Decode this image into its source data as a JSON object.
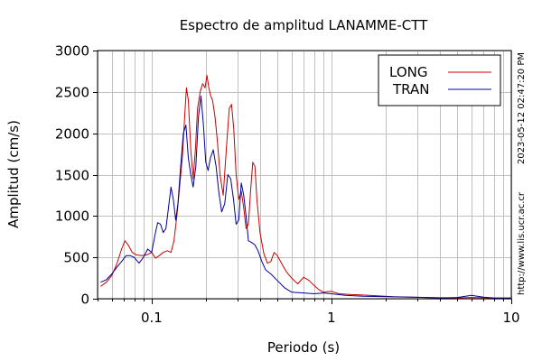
{
  "chart_data": {
    "type": "line",
    "title": "Espectro de amplitud LANAMME-CTT",
    "xlabel": "Periodo (s)",
    "ylabel": "Amplitud (cm/s)",
    "xscale": "log",
    "xlim": [
      0.05,
      10
    ],
    "ylim": [
      0,
      3000
    ],
    "x_ticks": [
      0.1,
      1,
      10
    ],
    "x_tick_labels": [
      "0.1",
      "1",
      "10"
    ],
    "y_ticks": [
      0,
      500,
      1000,
      1500,
      2000,
      2500,
      3000
    ],
    "y_tick_labels": [
      "0",
      "500",
      "1000",
      "1500",
      "2000",
      "2500",
      "3000"
    ],
    "grid": true,
    "legend_position": "top-right",
    "side_text": [
      "2023-05-12 02:47:20 PM",
      "http://www.lis.ucr.ac.cr"
    ],
    "series": [
      {
        "name": "LONG",
        "color": "#cc0000",
        "points": [
          [
            0.052,
            150
          ],
          [
            0.056,
            200
          ],
          [
            0.06,
            280
          ],
          [
            0.064,
            420
          ],
          [
            0.068,
            600
          ],
          [
            0.071,
            700
          ],
          [
            0.074,
            650
          ],
          [
            0.078,
            560
          ],
          [
            0.082,
            530
          ],
          [
            0.088,
            520
          ],
          [
            0.094,
            530
          ],
          [
            0.1,
            560
          ],
          [
            0.105,
            490
          ],
          [
            0.11,
            520
          ],
          [
            0.116,
            560
          ],
          [
            0.122,
            580
          ],
          [
            0.128,
            560
          ],
          [
            0.133,
            700
          ],
          [
            0.138,
            1000
          ],
          [
            0.143,
            1350
          ],
          [
            0.148,
            1700
          ],
          [
            0.153,
            2250
          ],
          [
            0.156,
            2550
          ],
          [
            0.16,
            2400
          ],
          [
            0.165,
            1800
          ],
          [
            0.17,
            1450
          ],
          [
            0.175,
            1800
          ],
          [
            0.18,
            2300
          ],
          [
            0.186,
            2500
          ],
          [
            0.192,
            2600
          ],
          [
            0.198,
            2550
          ],
          [
            0.203,
            2700
          ],
          [
            0.208,
            2550
          ],
          [
            0.213,
            2450
          ],
          [
            0.218,
            2400
          ],
          [
            0.225,
            2200
          ],
          [
            0.232,
            1900
          ],
          [
            0.24,
            1500
          ],
          [
            0.25,
            1250
          ],
          [
            0.26,
            1800
          ],
          [
            0.27,
            2300
          ],
          [
            0.278,
            2350
          ],
          [
            0.286,
            2050
          ],
          [
            0.295,
            1500
          ],
          [
            0.305,
            1200
          ],
          [
            0.315,
            1300
          ],
          [
            0.325,
            1100
          ],
          [
            0.335,
            850
          ],
          [
            0.345,
            900
          ],
          [
            0.355,
            1300
          ],
          [
            0.365,
            1650
          ],
          [
            0.375,
            1600
          ],
          [
            0.385,
            1200
          ],
          [
            0.4,
            800
          ],
          [
            0.42,
            550
          ],
          [
            0.44,
            430
          ],
          [
            0.46,
            450
          ],
          [
            0.48,
            560
          ],
          [
            0.5,
            520
          ],
          [
            0.53,
            420
          ],
          [
            0.56,
            330
          ],
          [
            0.6,
            250
          ],
          [
            0.65,
            180
          ],
          [
            0.7,
            260
          ],
          [
            0.75,
            220
          ],
          [
            0.8,
            160
          ],
          [
            0.85,
            110
          ],
          [
            0.9,
            80
          ],
          [
            1.0,
            90
          ],
          [
            1.1,
            60
          ],
          [
            1.3,
            50
          ],
          [
            1.5,
            45
          ],
          [
            1.8,
            35
          ],
          [
            2.2,
            25
          ],
          [
            3.0,
            18
          ],
          [
            4.0,
            12
          ],
          [
            5.0,
            10
          ],
          [
            6.0,
            15
          ],
          [
            7.0,
            12
          ],
          [
            8.0,
            10
          ],
          [
            10.0,
            8
          ]
        ]
      },
      {
        "name": "TRAN",
        "color": "#000099",
        "points": [
          [
            0.052,
            200
          ],
          [
            0.056,
            230
          ],
          [
            0.06,
            300
          ],
          [
            0.064,
            380
          ],
          [
            0.068,
            450
          ],
          [
            0.072,
            520
          ],
          [
            0.076,
            520
          ],
          [
            0.08,
            500
          ],
          [
            0.085,
            430
          ],
          [
            0.09,
            500
          ],
          [
            0.095,
            600
          ],
          [
            0.1,
            560
          ],
          [
            0.105,
            800
          ],
          [
            0.108,
            920
          ],
          [
            0.112,
            900
          ],
          [
            0.116,
            800
          ],
          [
            0.12,
            850
          ],
          [
            0.124,
            1100
          ],
          [
            0.128,
            1350
          ],
          [
            0.132,
            1200
          ],
          [
            0.136,
            950
          ],
          [
            0.14,
            1150
          ],
          [
            0.145,
            1600
          ],
          [
            0.15,
            2000
          ],
          [
            0.155,
            2100
          ],
          [
            0.16,
            1700
          ],
          [
            0.165,
            1500
          ],
          [
            0.17,
            1350
          ],
          [
            0.176,
            1600
          ],
          [
            0.182,
            2200
          ],
          [
            0.188,
            2450
          ],
          [
            0.194,
            2100
          ],
          [
            0.2,
            1650
          ],
          [
            0.206,
            1550
          ],
          [
            0.212,
            1700
          ],
          [
            0.22,
            1800
          ],
          [
            0.228,
            1600
          ],
          [
            0.236,
            1300
          ],
          [
            0.245,
            1050
          ],
          [
            0.255,
            1150
          ],
          [
            0.265,
            1500
          ],
          [
            0.275,
            1450
          ],
          [
            0.285,
            1200
          ],
          [
            0.295,
            900
          ],
          [
            0.305,
            950
          ],
          [
            0.315,
            1400
          ],
          [
            0.325,
            1250
          ],
          [
            0.335,
            1000
          ],
          [
            0.345,
            700
          ],
          [
            0.36,
            680
          ],
          [
            0.375,
            650
          ],
          [
            0.39,
            580
          ],
          [
            0.41,
            450
          ],
          [
            0.43,
            350
          ],
          [
            0.46,
            300
          ],
          [
            0.5,
            220
          ],
          [
            0.55,
            130
          ],
          [
            0.6,
            80
          ],
          [
            0.7,
            70
          ],
          [
            0.8,
            60
          ],
          [
            0.9,
            70
          ],
          [
            1.0,
            60
          ],
          [
            1.2,
            40
          ],
          [
            1.5,
            30
          ],
          [
            2.0,
            25
          ],
          [
            3.0,
            18
          ],
          [
            4.0,
            10
          ],
          [
            5.0,
            15
          ],
          [
            6.0,
            40
          ],
          [
            7.0,
            20
          ],
          [
            8.0,
            10
          ],
          [
            10.0,
            8
          ]
        ]
      }
    ]
  }
}
